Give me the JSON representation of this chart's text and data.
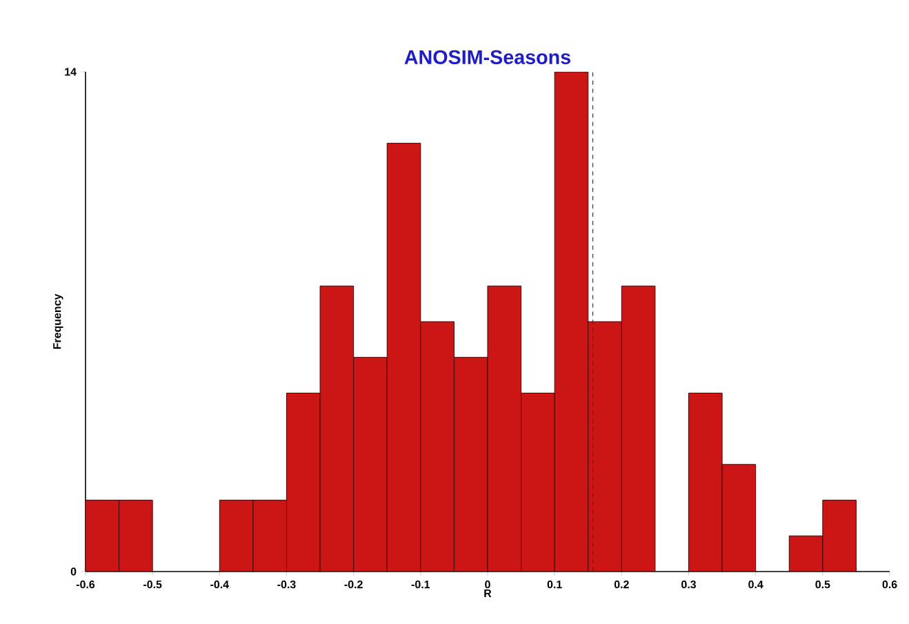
{
  "chart_data": {
    "type": "histogram",
    "title": "ANOSIM-Seasons",
    "xlabel": "R",
    "ylabel": "Frequency",
    "bins": [
      -0.6,
      -0.55,
      -0.5,
      -0.45,
      -0.4,
      -0.35,
      -0.3,
      -0.25,
      -0.2,
      -0.15,
      -0.1,
      -0.05,
      0,
      0.05,
      0.1,
      0.15,
      0.2,
      0.25,
      0.3,
      0.35,
      0.4,
      0.45,
      0.5,
      0.55
    ],
    "values": [
      2,
      2,
      0,
      0,
      2,
      2,
      5,
      8,
      6,
      12,
      7,
      6,
      8,
      5,
      14,
      7,
      8,
      0,
      5,
      3,
      0,
      1,
      2
    ],
    "color": "#cc1616",
    "xlim": [
      -0.6,
      0.6
    ],
    "xticks": [
      -0.6,
      -0.5,
      -0.4,
      -0.3,
      -0.2,
      -0.1,
      0,
      0.1,
      0.2,
      0.3,
      0.4,
      0.5,
      0.6
    ],
    "ylim": [
      0,
      14
    ],
    "yticks": [
      0,
      14
    ],
    "ref_lines": [
      {
        "axis": "x",
        "value": 0.157,
        "line_style": "dashed",
        "color": "#333333"
      }
    ],
    "grid": false
  }
}
